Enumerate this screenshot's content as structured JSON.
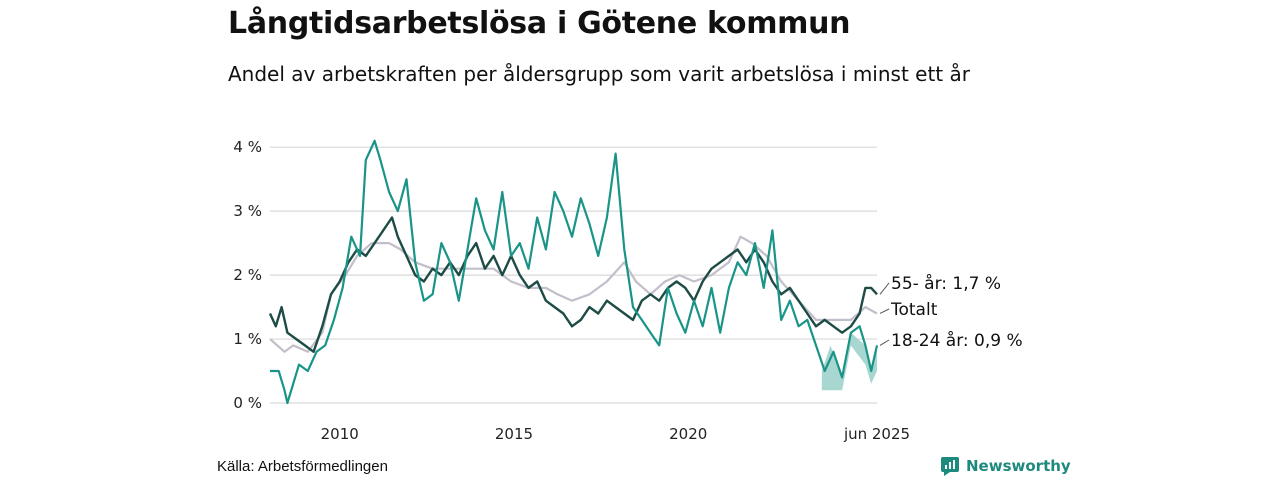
{
  "title": "Långtidsarbetslösa i Götene kommun",
  "subtitle": "Andel av arbetskraften per åldersgrupp som varit arbetslösa i minst ett år",
  "source": "Källa: Arbetsförmedlingen",
  "brand": "Newsworthy",
  "colors": {
    "total": "#c3bfca",
    "age55": "#1d4b45",
    "age1824": "#199487",
    "band": "#9fd3cc",
    "grid": "#d9d9d9"
  },
  "chart_data": {
    "type": "line",
    "x_range": [
      "2008-01",
      "2025-06"
    ],
    "ylim": [
      0,
      4.3
    ],
    "y_ticks": [
      0,
      1,
      2,
      3,
      4
    ],
    "y_tick_labels": [
      "0 %",
      "1 %",
      "2 %",
      "3 %",
      "4 %"
    ],
    "x_ticks": [
      "2010-01",
      "2015-01",
      "2020-01",
      "2025-06"
    ],
    "x_tick_labels": [
      "2010",
      "2015",
      "2020",
      "jun 2025"
    ],
    "series": [
      {
        "key": "total",
        "label": "Totalt",
        "points": [
          [
            "2008-01",
            1.0
          ],
          [
            "2008-06",
            0.8
          ],
          [
            "2008-09",
            0.9
          ],
          [
            "2009-02",
            0.8
          ],
          [
            "2009-07",
            1.1
          ],
          [
            "2009-10",
            1.7
          ],
          [
            "2010-03",
            2.0
          ],
          [
            "2010-07",
            2.3
          ],
          [
            "2010-12",
            2.5
          ],
          [
            "2011-06",
            2.5
          ],
          [
            "2011-10",
            2.4
          ],
          [
            "2012-03",
            2.2
          ],
          [
            "2012-09",
            2.1
          ],
          [
            "2013-06",
            2.1
          ],
          [
            "2013-12",
            2.1
          ],
          [
            "2014-06",
            2.1
          ],
          [
            "2014-12",
            1.9
          ],
          [
            "2015-06",
            1.8
          ],
          [
            "2015-12",
            1.8
          ],
          [
            "2016-04",
            1.7
          ],
          [
            "2016-09",
            1.6
          ],
          [
            "2017-03",
            1.7
          ],
          [
            "2017-09",
            1.9
          ],
          [
            "2018-03",
            2.2
          ],
          [
            "2018-07",
            1.9
          ],
          [
            "2018-12",
            1.7
          ],
          [
            "2019-05",
            1.9
          ],
          [
            "2019-10",
            2.0
          ],
          [
            "2020-03",
            1.9
          ],
          [
            "2020-09",
            2.0
          ],
          [
            "2021-03",
            2.2
          ],
          [
            "2021-07",
            2.6
          ],
          [
            "2021-11",
            2.5
          ],
          [
            "2022-04",
            2.3
          ],
          [
            "2022-09",
            1.9
          ],
          [
            "2023-03",
            1.6
          ],
          [
            "2023-09",
            1.3
          ],
          [
            "2024-03",
            1.3
          ],
          [
            "2024-09",
            1.3
          ],
          [
            "2025-02",
            1.5
          ],
          [
            "2025-06",
            1.4
          ]
        ]
      },
      {
        "key": "age55",
        "label": "55- år: 1,7 %",
        "points": [
          [
            "2008-01",
            1.4
          ],
          [
            "2008-03",
            1.2
          ],
          [
            "2008-05",
            1.5
          ],
          [
            "2008-07",
            1.1
          ],
          [
            "2008-10",
            1.0
          ],
          [
            "2009-01",
            0.9
          ],
          [
            "2009-04",
            0.8
          ],
          [
            "2009-07",
            1.2
          ],
          [
            "2009-10",
            1.7
          ],
          [
            "2010-01",
            1.9
          ],
          [
            "2010-04",
            2.2
          ],
          [
            "2010-07",
            2.4
          ],
          [
            "2010-10",
            2.3
          ],
          [
            "2011-01",
            2.5
          ],
          [
            "2011-04",
            2.7
          ],
          [
            "2011-07",
            2.9
          ],
          [
            "2011-09",
            2.6
          ],
          [
            "2011-12",
            2.3
          ],
          [
            "2012-03",
            2.0
          ],
          [
            "2012-06",
            1.9
          ],
          [
            "2012-09",
            2.1
          ],
          [
            "2012-12",
            2.0
          ],
          [
            "2013-03",
            2.2
          ],
          [
            "2013-06",
            2.0
          ],
          [
            "2013-09",
            2.3
          ],
          [
            "2013-12",
            2.5
          ],
          [
            "2014-03",
            2.1
          ],
          [
            "2014-06",
            2.3
          ],
          [
            "2014-09",
            2.0
          ],
          [
            "2014-12",
            2.3
          ],
          [
            "2015-03",
            2.0
          ],
          [
            "2015-06",
            1.8
          ],
          [
            "2015-09",
            1.9
          ],
          [
            "2015-12",
            1.6
          ],
          [
            "2016-03",
            1.5
          ],
          [
            "2016-06",
            1.4
          ],
          [
            "2016-09",
            1.2
          ],
          [
            "2016-12",
            1.3
          ],
          [
            "2017-03",
            1.5
          ],
          [
            "2017-06",
            1.4
          ],
          [
            "2017-09",
            1.6
          ],
          [
            "2017-12",
            1.5
          ],
          [
            "2018-03",
            1.4
          ],
          [
            "2018-06",
            1.3
          ],
          [
            "2018-09",
            1.6
          ],
          [
            "2018-12",
            1.7
          ],
          [
            "2019-03",
            1.6
          ],
          [
            "2019-06",
            1.8
          ],
          [
            "2019-09",
            1.9
          ],
          [
            "2019-12",
            1.8
          ],
          [
            "2020-03",
            1.6
          ],
          [
            "2020-06",
            1.9
          ],
          [
            "2020-09",
            2.1
          ],
          [
            "2020-12",
            2.2
          ],
          [
            "2021-03",
            2.3
          ],
          [
            "2021-06",
            2.4
          ],
          [
            "2021-09",
            2.2
          ],
          [
            "2021-12",
            2.4
          ],
          [
            "2022-03",
            2.2
          ],
          [
            "2022-06",
            1.9
          ],
          [
            "2022-09",
            1.7
          ],
          [
            "2022-12",
            1.8
          ],
          [
            "2023-03",
            1.6
          ],
          [
            "2023-06",
            1.4
          ],
          [
            "2023-09",
            1.2
          ],
          [
            "2023-12",
            1.3
          ],
          [
            "2024-03",
            1.2
          ],
          [
            "2024-06",
            1.1
          ],
          [
            "2024-09",
            1.2
          ],
          [
            "2024-12",
            1.4
          ],
          [
            "2025-02",
            1.8
          ],
          [
            "2025-04",
            1.8
          ],
          [
            "2025-06",
            1.7
          ]
        ]
      },
      {
        "key": "age1824",
        "label": "18-24 år: 0,9 %",
        "points": [
          [
            "2008-01",
            0.5
          ],
          [
            "2008-04",
            0.5
          ],
          [
            "2008-06",
            0.2
          ],
          [
            "2008-07",
            0.0
          ],
          [
            "2008-09",
            0.3
          ],
          [
            "2008-11",
            0.6
          ],
          [
            "2009-02",
            0.5
          ],
          [
            "2009-05",
            0.8
          ],
          [
            "2009-08",
            0.9
          ],
          [
            "2009-11",
            1.3
          ],
          [
            "2010-02",
            1.8
          ],
          [
            "2010-05",
            2.6
          ],
          [
            "2010-08",
            2.3
          ],
          [
            "2010-10",
            3.8
          ],
          [
            "2011-01",
            4.1
          ],
          [
            "2011-03",
            3.8
          ],
          [
            "2011-06",
            3.3
          ],
          [
            "2011-09",
            3.0
          ],
          [
            "2011-12",
            3.5
          ],
          [
            "2012-03",
            2.2
          ],
          [
            "2012-06",
            1.6
          ],
          [
            "2012-09",
            1.7
          ],
          [
            "2012-12",
            2.5
          ],
          [
            "2013-03",
            2.2
          ],
          [
            "2013-06",
            1.6
          ],
          [
            "2013-09",
            2.4
          ],
          [
            "2013-12",
            3.2
          ],
          [
            "2014-03",
            2.7
          ],
          [
            "2014-06",
            2.4
          ],
          [
            "2014-09",
            3.3
          ],
          [
            "2014-12",
            2.3
          ],
          [
            "2015-03",
            2.5
          ],
          [
            "2015-06",
            2.1
          ],
          [
            "2015-09",
            2.9
          ],
          [
            "2015-12",
            2.4
          ],
          [
            "2016-03",
            3.3
          ],
          [
            "2016-06",
            3.0
          ],
          [
            "2016-09",
            2.6
          ],
          [
            "2016-12",
            3.2
          ],
          [
            "2017-03",
            2.8
          ],
          [
            "2017-06",
            2.3
          ],
          [
            "2017-09",
            2.9
          ],
          [
            "2017-12",
            3.9
          ],
          [
            "2018-03",
            2.4
          ],
          [
            "2018-06",
            1.5
          ],
          [
            "2018-09",
            1.3
          ],
          [
            "2018-12",
            1.1
          ],
          [
            "2019-03",
            0.9
          ],
          [
            "2019-06",
            1.8
          ],
          [
            "2019-09",
            1.4
          ],
          [
            "2019-12",
            1.1
          ],
          [
            "2020-03",
            1.6
          ],
          [
            "2020-06",
            1.2
          ],
          [
            "2020-09",
            1.8
          ],
          [
            "2020-12",
            1.1
          ],
          [
            "2021-03",
            1.8
          ],
          [
            "2021-06",
            2.2
          ],
          [
            "2021-09",
            2.0
          ],
          [
            "2021-12",
            2.5
          ],
          [
            "2022-03",
            1.8
          ],
          [
            "2022-06",
            2.7
          ],
          [
            "2022-09",
            1.3
          ],
          [
            "2022-12",
            1.6
          ],
          [
            "2023-03",
            1.2
          ],
          [
            "2023-06",
            1.3
          ],
          [
            "2023-09",
            0.9
          ],
          [
            "2023-12",
            0.5
          ],
          [
            "2024-03",
            0.8
          ],
          [
            "2024-06",
            0.4
          ],
          [
            "2024-09",
            1.1
          ],
          [
            "2024-12",
            1.2
          ],
          [
            "2025-02",
            0.9
          ],
          [
            "2025-04",
            0.5
          ],
          [
            "2025-06",
            0.9
          ]
        ]
      }
    ],
    "band": {
      "series": "age1824",
      "points": [
        [
          "2023-11",
          0.5,
          0.2
        ],
        [
          "2024-02",
          0.9,
          0.2
        ],
        [
          "2024-06",
          0.4,
          0.2
        ],
        [
          "2024-09",
          1.1,
          0.9
        ],
        [
          "2025-02",
          0.9,
          0.6
        ],
        [
          "2025-04",
          0.5,
          0.3
        ],
        [
          "2025-06",
          0.9,
          0.5
        ]
      ]
    }
  }
}
